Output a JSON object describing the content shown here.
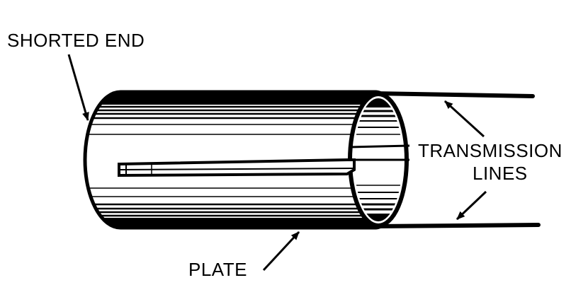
{
  "labels": {
    "shorted_end": "SHORTED END",
    "transmission": "TRANSMISSION",
    "lines": "LINES",
    "plate": "PLATE"
  },
  "colors": {
    "ink": "#000000",
    "paper": "#ffffff"
  }
}
